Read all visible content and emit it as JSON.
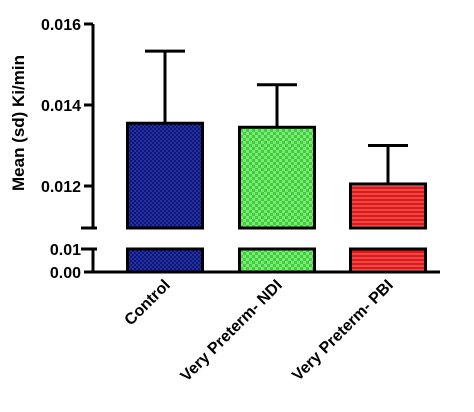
{
  "chart_data": {
    "type": "bar",
    "title": "",
    "ylabel": "Mean (sd) Ki/min",
    "xlabel": "",
    "categories": [
      "Control",
      "Very Preterm- NDI",
      "Very Preterm- PBI"
    ],
    "values": [
      0.01355,
      0.01345,
      0.01205
    ],
    "error_sd": [
      0.00178,
      0.00105,
      0.00095
    ],
    "colors": [
      "#17208a",
      "#4fd84a",
      "#e21b1b"
    ],
    "y_axis": {
      "broken": true,
      "lower_segment": {
        "range": [
          0.0,
          0.01
        ],
        "ticks": [
          "0.00",
          "0.01"
        ]
      },
      "upper_segment": {
        "range": [
          0.011,
          0.016
        ],
        "ticks": [
          "0.012",
          "0.014",
          "0.016"
        ]
      }
    },
    "grid": false,
    "legend": "none"
  }
}
